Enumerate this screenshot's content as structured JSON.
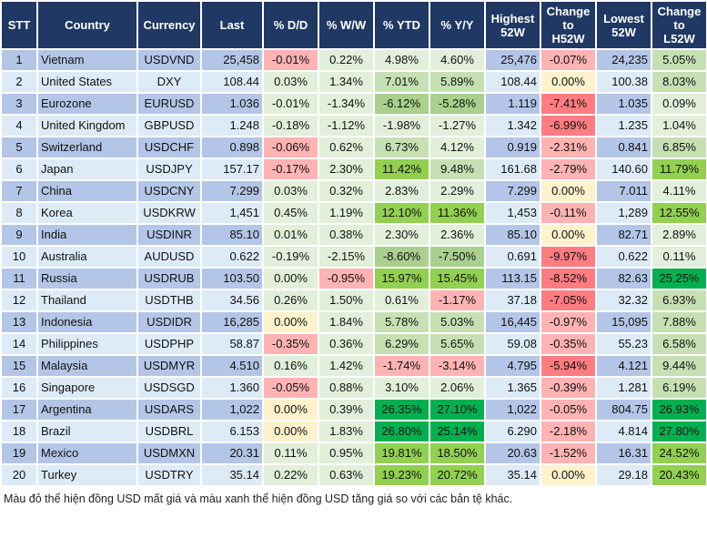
{
  "palette": {
    "header": "#203864",
    "row_odd": "#b4c6e7",
    "row_even": "#ddebf7",
    "L": "#e2efda",
    "M": "#c6e0b4",
    "G": "#a9d08e",
    "B": "#92d050",
    "D": "#00b050",
    "P": "#ffb3b3",
    "R": "#ff7c80",
    "Y": "#fff2cc"
  },
  "headers": [
    "STT",
    "Country",
    "Currency",
    "Last",
    "% D/D",
    "% W/W",
    "% YTD",
    "% Y/Y",
    "Highest\n52W",
    "Change\nto\nH52W",
    "Lowest\n52W",
    "Change\nto\nL52W"
  ],
  "rows": [
    {
      "stt": "1",
      "country": "Vietnam",
      "currency": "USDVND",
      "last": "25,458",
      "dd": "-0.01%",
      "ww": "0.22%",
      "ytd": "4.98%",
      "yy": "4.60%",
      "high": "25,476",
      "ch": "-0.07%",
      "low": "24,235",
      "cl": "5.05%",
      "colors": [
        "P",
        "L",
        "L",
        "L",
        "P",
        "M"
      ]
    },
    {
      "stt": "2",
      "country": "United States",
      "currency": "DXY",
      "last": "108.44",
      "dd": "0.03%",
      "ww": "1.34%",
      "ytd": "7.01%",
      "yy": "5.89%",
      "high": "108.44",
      "ch": "0.00%",
      "low": "100.38",
      "cl": "8.03%",
      "colors": [
        "L",
        "L",
        "M",
        "M",
        "Y",
        "M"
      ]
    },
    {
      "stt": "3",
      "country": "Eurozone",
      "currency": "EURUSD",
      "last": "1.036",
      "dd": "-0.01%",
      "ww": "-1.34%",
      "ytd": "-6.12%",
      "yy": "-5.28%",
      "high": "1.119",
      "ch": "-7.41%",
      "low": "1.035",
      "cl": "0.09%",
      "colors": [
        "L",
        "L",
        "G",
        "G",
        "R",
        "L"
      ]
    },
    {
      "stt": "4",
      "country": "United Kingdom",
      "currency": "GBPUSD",
      "last": "1.248",
      "dd": "-0.18%",
      "ww": "-1.12%",
      "ytd": "-1.98%",
      "yy": "-1.27%",
      "high": "1.342",
      "ch": "-6.99%",
      "low": "1.235",
      "cl": "1.04%",
      "colors": [
        "L",
        "L",
        "L",
        "L",
        "R",
        "L"
      ]
    },
    {
      "stt": "5",
      "country": "Switzerland",
      "currency": "USDCHF",
      "last": "0.898",
      "dd": "-0.06%",
      "ww": "0.62%",
      "ytd": "6.73%",
      "yy": "4.12%",
      "high": "0.919",
      "ch": "-2.31%",
      "low": "0.841",
      "cl": "6.85%",
      "colors": [
        "P",
        "L",
        "M",
        "L",
        "P",
        "M"
      ]
    },
    {
      "stt": "6",
      "country": "Japan",
      "currency": "USDJPY",
      "last": "157.17",
      "dd": "-0.17%",
      "ww": "2.30%",
      "ytd": "11.42%",
      "yy": "9.48%",
      "high": "161.68",
      "ch": "-2.79%",
      "low": "140.60",
      "cl": "11.79%",
      "colors": [
        "P",
        "L",
        "B",
        "M",
        "P",
        "B"
      ]
    },
    {
      "stt": "7",
      "country": "China",
      "currency": "USDCNY",
      "last": "7.299",
      "dd": "0.03%",
      "ww": "0.32%",
      "ytd": "2.83%",
      "yy": "2.29%",
      "high": "7.299",
      "ch": "0.00%",
      "low": "7.011",
      "cl": "4.11%",
      "colors": [
        "L",
        "L",
        "L",
        "L",
        "Y",
        "L"
      ]
    },
    {
      "stt": "8",
      "country": "Korea",
      "currency": "USDKRW",
      "last": "1,451",
      "dd": "0.45%",
      "ww": "1.19%",
      "ytd": "12.10%",
      "yy": "11.36%",
      "high": "1,453",
      "ch": "-0.11%",
      "low": "1,289",
      "cl": "12.55%",
      "colors": [
        "L",
        "L",
        "B",
        "B",
        "P",
        "B"
      ]
    },
    {
      "stt": "9",
      "country": "India",
      "currency": "USDINR",
      "last": "85.10",
      "dd": "0.01%",
      "ww": "0.38%",
      "ytd": "2.30%",
      "yy": "2.36%",
      "high": "85.10",
      "ch": "0.00%",
      "low": "82.71",
      "cl": "2.89%",
      "colors": [
        "L",
        "L",
        "L",
        "L",
        "Y",
        "L"
      ]
    },
    {
      "stt": "10",
      "country": "Australia",
      "currency": "AUDUSD",
      "last": "0.622",
      "dd": "-0.19%",
      "ww": "-2.15%",
      "ytd": "-8.60%",
      "yy": "-7.50%",
      "high": "0.691",
      "ch": "-9.97%",
      "low": "0.622",
      "cl": "0.11%",
      "colors": [
        "L",
        "L",
        "G",
        "G",
        "R",
        "L"
      ]
    },
    {
      "stt": "11",
      "country": "Russia",
      "currency": "USDRUB",
      "last": "103.50",
      "dd": "0.00%",
      "ww": "-0.95%",
      "ytd": "15.97%",
      "yy": "15.45%",
      "high": "113.15",
      "ch": "-8.52%",
      "low": "82.63",
      "cl": "25.25%",
      "colors": [
        "L",
        "P",
        "B",
        "B",
        "R",
        "D"
      ]
    },
    {
      "stt": "12",
      "country": "Thailand",
      "currency": "USDTHB",
      "last": "34.56",
      "dd": "0.26%",
      "ww": "1.50%",
      "ytd": "0.61%",
      "yy": "-1.17%",
      "high": "37.18",
      "ch": "-7.05%",
      "low": "32.32",
      "cl": "6.93%",
      "colors": [
        "L",
        "L",
        "L",
        "P",
        "R",
        "M"
      ]
    },
    {
      "stt": "13",
      "country": "Indonesia",
      "currency": "USDIDR",
      "last": "16,285",
      "dd": "0.00%",
      "ww": "1.84%",
      "ytd": "5.78%",
      "yy": "5.03%",
      "high": "16,445",
      "ch": "-0.97%",
      "low": "15,095",
      "cl": "7.88%",
      "colors": [
        "Y",
        "L",
        "M",
        "M",
        "P",
        "M"
      ]
    },
    {
      "stt": "14",
      "country": "Philippines",
      "currency": "USDPHP",
      "last": "58.87",
      "dd": "-0.35%",
      "ww": "0.36%",
      "ytd": "6.29%",
      "yy": "5.65%",
      "high": "59.08",
      "ch": "-0.35%",
      "low": "55.23",
      "cl": "6.58%",
      "colors": [
        "P",
        "L",
        "M",
        "M",
        "P",
        "M"
      ]
    },
    {
      "stt": "15",
      "country": "Malaysia",
      "currency": "USDMYR",
      "last": "4.510",
      "dd": "0.16%",
      "ww": "1.42%",
      "ytd": "-1.74%",
      "yy": "-3.14%",
      "high": "4.795",
      "ch": "-5.94%",
      "low": "4.121",
      "cl": "9.44%",
      "colors": [
        "L",
        "L",
        "P",
        "P",
        "R",
        "M"
      ]
    },
    {
      "stt": "16",
      "country": "Singapore",
      "currency": "USDSGD",
      "last": "1.360",
      "dd": "-0.05%",
      "ww": "0.88%",
      "ytd": "3.10%",
      "yy": "2.06%",
      "high": "1.365",
      "ch": "-0.39%",
      "low": "1.281",
      "cl": "6.19%",
      "colors": [
        "P",
        "L",
        "L",
        "L",
        "P",
        "M"
      ]
    },
    {
      "stt": "17",
      "country": "Argentina",
      "currency": "USDARS",
      "last": "1,022",
      "dd": "0.00%",
      "ww": "0.39%",
      "ytd": "26.35%",
      "yy": "27.10%",
      "high": "1,022",
      "ch": "-0.05%",
      "low": "804.75",
      "cl": "26.93%",
      "colors": [
        "Y",
        "L",
        "D",
        "D",
        "P",
        "D"
      ]
    },
    {
      "stt": "18",
      "country": "Brazil",
      "currency": "USDBRL",
      "last": "6.153",
      "dd": "0.00%",
      "ww": "1.83%",
      "ytd": "26.80%",
      "yy": "25.14%",
      "high": "6.290",
      "ch": "-2.18%",
      "low": "4.814",
      "cl": "27.80%",
      "colors": [
        "Y",
        "L",
        "D",
        "D",
        "P",
        "D"
      ]
    },
    {
      "stt": "19",
      "country": "Mexico",
      "currency": "USDMXN",
      "last": "20.31",
      "dd": "0.11%",
      "ww": "0.95%",
      "ytd": "19.81%",
      "yy": "18.50%",
      "high": "20.63",
      "ch": "-1.52%",
      "low": "16.31",
      "cl": "24.52%",
      "colors": [
        "L",
        "L",
        "B",
        "B",
        "P",
        "B"
      ]
    },
    {
      "stt": "20",
      "country": "Turkey",
      "currency": "USDTRY",
      "last": "35.14",
      "dd": "0.22%",
      "ww": "0.63%",
      "ytd": "19.23%",
      "yy": "20.72%",
      "high": "35.14",
      "ch": "0.00%",
      "low": "29.18",
      "cl": "20.43%",
      "colors": [
        "L",
        "L",
        "B",
        "B",
        "Y",
        "B"
      ]
    }
  ],
  "caption": "Màu đỏ thể hiện đồng USD mất giá và màu xanh thể hiện đồng USD tăng giá so với các bản tệ khác."
}
